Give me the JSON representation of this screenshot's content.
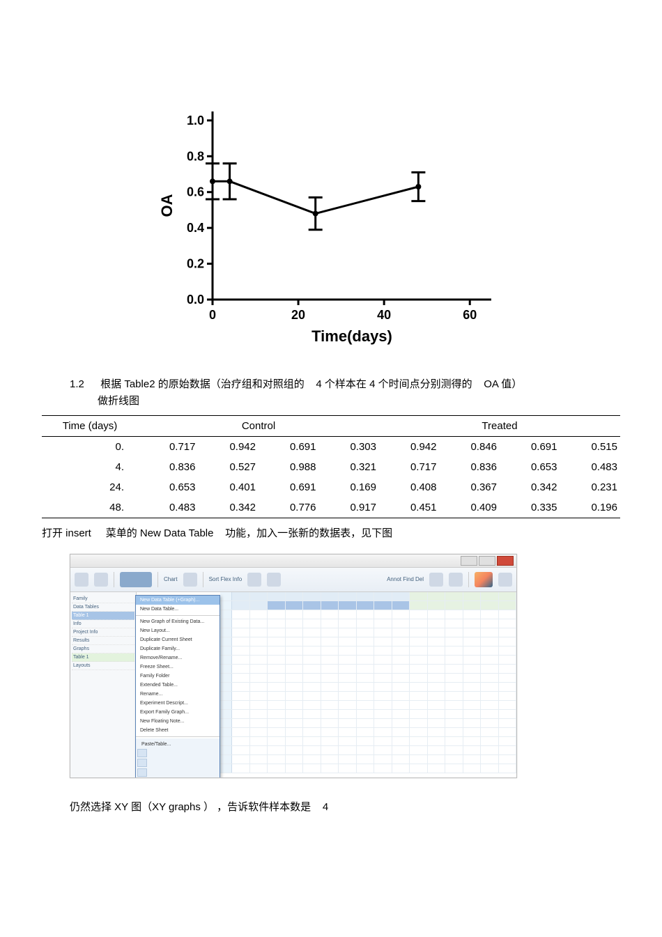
{
  "chart": {
    "type": "line-with-errorbars",
    "ylabel": "OA",
    "xlabel": "Time(days)",
    "xlim": [
      0,
      65
    ],
    "ylim": [
      0,
      1.05
    ],
    "xticks": [
      0,
      20,
      40,
      60
    ],
    "yticks": [
      0.0,
      0.2,
      0.4,
      0.6,
      0.8,
      1.0
    ],
    "ytick_labels": [
      "0.0",
      "0.2",
      "0.4",
      "0.6",
      "0.8",
      "1.0"
    ],
    "series": {
      "x": [
        0,
        4,
        24,
        48
      ],
      "y": [
        0.66,
        0.66,
        0.48,
        0.63
      ],
      "err": [
        0.1,
        0.1,
        0.09,
        0.08
      ]
    },
    "line_width": 3,
    "cap_width": 10,
    "marker_radius": 4,
    "axis_width": 3,
    "tick_fontsize": 18,
    "label_fontsize": 22,
    "label_fontweight": "bold",
    "color": "#000000",
    "background_color": "#ffffff"
  },
  "section12": {
    "num": "1.2",
    "text_parts": [
      "根据 Table2  的原始数据（治疗组和对照组的",
      "4 个样本在  4 个时间点分别测得的",
      "OA 值）"
    ],
    "line2": "做折线图"
  },
  "table": {
    "columns": {
      "time_header": "Time (days)",
      "group1": "Control",
      "group2": "Treated"
    },
    "rows": [
      {
        "time": "0.",
        "vals": [
          "0.717",
          "0.942",
          "0.691",
          "0.303",
          "0.942",
          "0.846",
          "0.691",
          "0.515"
        ]
      },
      {
        "time": "4.",
        "vals": [
          "0.836",
          "0.527",
          "0.988",
          "0.321",
          "0.717",
          "0.836",
          "0.653",
          "0.483"
        ]
      },
      {
        "time": "24.",
        "vals": [
          "0.653",
          "0.401",
          "0.691",
          "0.169",
          "0.408",
          "0.367",
          "0.342",
          "0.231"
        ]
      },
      {
        "time": "48.",
        "vals": [
          "0.483",
          "0.342",
          "0.776",
          "0.917",
          "0.451",
          "0.409",
          "0.335",
          "0.196"
        ]
      }
    ]
  },
  "post_table": {
    "parts": [
      "打开 insert",
      "菜单的 New Data Table",
      "功能，加入一张新的数据表，见下图"
    ]
  },
  "screenshot": {
    "toolbar_texts": [
      "Chart",
      "Sort  Flex  Info",
      "Annot  Find  Del"
    ],
    "sidebar_items": [
      "Family",
      "Data Tables",
      "Table 1",
      "Info",
      "Project Info",
      "Results",
      "Graphs",
      "Table 1",
      "Layouts"
    ],
    "menu_items_top": [
      "New Data Table (+Graph)...",
      "New Data Table..."
    ],
    "menu_items_rest": [
      "New Graph of Existing Data...",
      "New Layout...",
      "Duplicate Current Sheet",
      "Duplicate Family...",
      "Remove/Rename...",
      "Freeze Sheet...",
      "Family Folder",
      "Extended Table...",
      "Rename...",
      "Experiment Descript...",
      "Export Family Graph...",
      "New Floating Note...",
      "Delete Sheet"
    ],
    "menu_footer_label": "Paste/Table..."
  },
  "bottom_text": {
    "parts": [
      "仍然选择  XY 图（XY graphs ）  ，告诉软件样本数是",
      "4"
    ]
  }
}
